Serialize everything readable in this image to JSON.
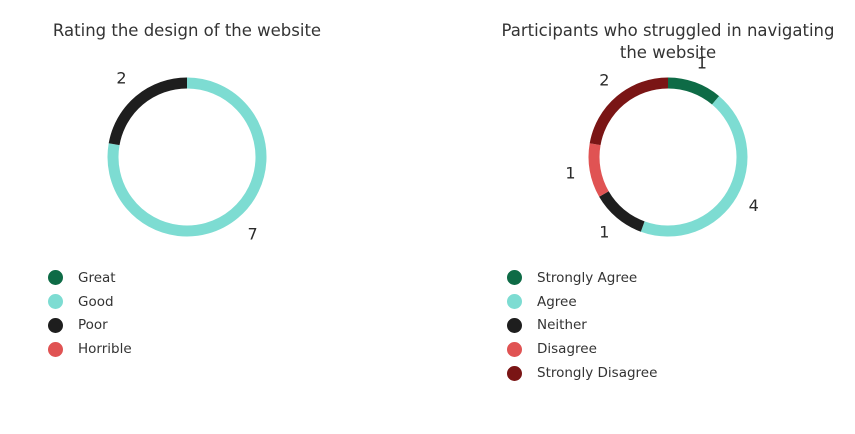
{
  "chart_data": [
    {
      "type": "pie",
      "donut": true,
      "title": "Rating the design of the website",
      "categories": [
        "Great",
        "Good",
        "Poor",
        "Horrible"
      ],
      "values": [
        0,
        7,
        2,
        0
      ],
      "colors": [
        "#0e6b46",
        "#7ddcd2",
        "#1e1e1e",
        "#e05353"
      ],
      "legend": "bottom-left"
    },
    {
      "type": "pie",
      "donut": true,
      "title": "Participants who struggled in navigating the website",
      "categories": [
        "Strongly Agree",
        "Agree",
        "Neither",
        "Disagree",
        "Strongly Disagree"
      ],
      "values": [
        1,
        4,
        1,
        1,
        2
      ],
      "colors": [
        "#0e6b46",
        "#7ddcd2",
        "#1e1e1e",
        "#e05353",
        "#7a1515"
      ],
      "legend": "bottom-left"
    }
  ]
}
